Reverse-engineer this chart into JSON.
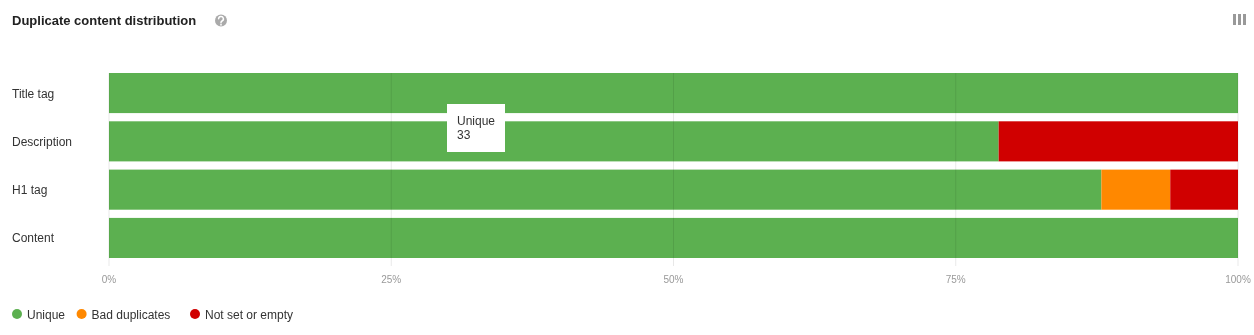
{
  "chart_data": {
    "type": "bar",
    "title": "Duplicate content distribution",
    "orientation": "horizontal",
    "stacked": true,
    "categories": [
      "Title tag",
      "Description",
      "H1 tag",
      "Content"
    ],
    "series": [
      {
        "name": "Unique",
        "color": "#5cb050",
        "values": [
          100,
          78.8,
          87.9,
          100
        ]
      },
      {
        "name": "Bad duplicates",
        "color": "#ff8800",
        "values": [
          0,
          0,
          6.1,
          0
        ]
      },
      {
        "name": "Not set or empty",
        "color": "#d00000",
        "values": [
          0,
          21.2,
          6.0,
          0
        ]
      }
    ],
    "xlim": [
      0,
      100
    ],
    "xticks": [
      {
        "value": 0,
        "label": "0%"
      },
      {
        "value": 25,
        "label": "25%"
      },
      {
        "value": 50,
        "label": "50%"
      },
      {
        "value": 75,
        "label": "75%"
      },
      {
        "value": 100,
        "label": "100%"
      }
    ],
    "grid": "x",
    "legend": "bottom left",
    "annotations": [
      "Unique\n33"
    ]
  }
}
